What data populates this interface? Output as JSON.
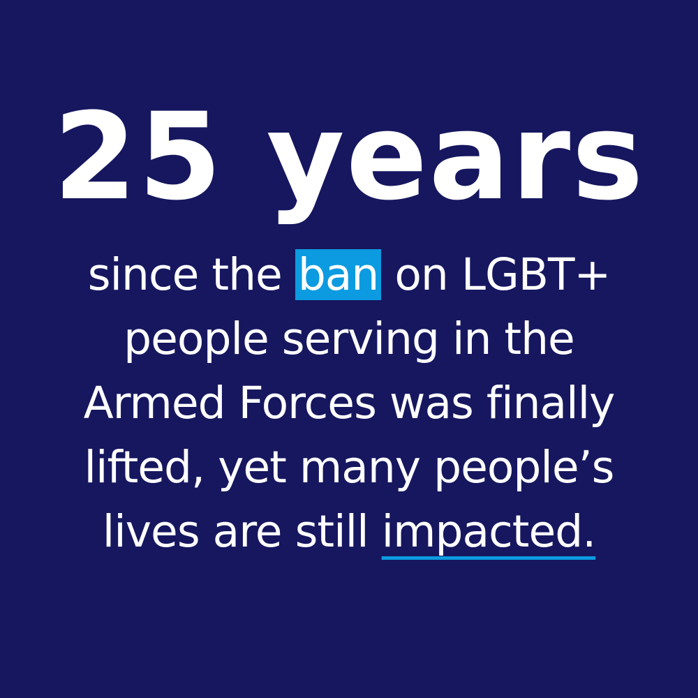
{
  "headline": "25 years",
  "body": {
    "line1_before": "since the",
    "line1_highlight": "ban",
    "line1_after": "on LGBT+",
    "line2": "people serving in the",
    "line3": "Armed Forces was finally",
    "line4": "lifted, yet many people’s",
    "line5_before": "lives are still",
    "line5_underlined": "impacted."
  },
  "colors": {
    "background": "#16175f",
    "accent": "#0c9be0",
    "text": "#ffffff"
  }
}
